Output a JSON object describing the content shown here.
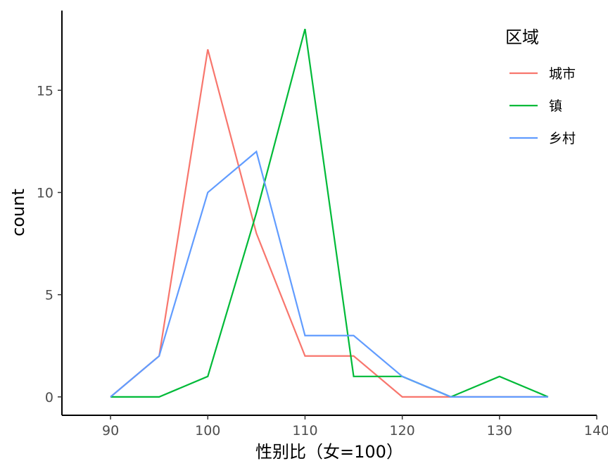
{
  "chart_data": {
    "type": "line",
    "xlabel": "性别比（女=100）",
    "ylabel": "count",
    "xlim": [
      85,
      140
    ],
    "ylim": [
      -0.9,
      18.9
    ],
    "x_ticks": [
      90,
      100,
      110,
      120,
      130,
      140
    ],
    "y_ticks": [
      0,
      5,
      10,
      15
    ],
    "grid": false,
    "legend": {
      "title": "区域",
      "position": "top-right"
    },
    "series": [
      {
        "name": "城市",
        "color": "#f8766d",
        "x": [
          90,
          95,
          100,
          105,
          110,
          115,
          120,
          125,
          130,
          135
        ],
        "values": [
          0,
          2,
          17,
          8,
          2,
          2,
          0,
          0,
          0,
          0
        ]
      },
      {
        "name": "镇",
        "color": "#00ba38",
        "x": [
          90,
          95,
          100,
          105,
          110,
          115,
          120,
          125,
          130,
          135
        ],
        "values": [
          0,
          0,
          1,
          9,
          18,
          1,
          1,
          0,
          1,
          0
        ]
      },
      {
        "name": "乡村",
        "color": "#619cff",
        "x": [
          90,
          95,
          100,
          105,
          110,
          115,
          120,
          125,
          130,
          135
        ],
        "values": [
          0,
          2,
          10,
          12,
          3,
          3,
          1,
          0,
          0,
          0
        ]
      }
    ]
  }
}
